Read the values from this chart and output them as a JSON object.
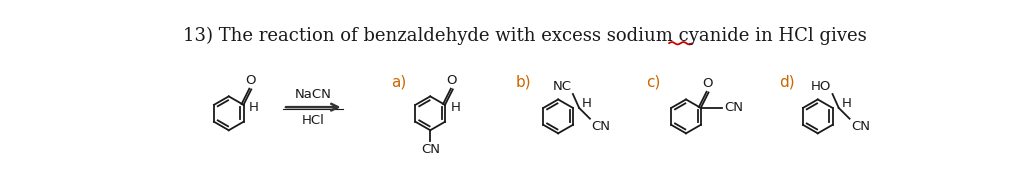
{
  "title_text": "13) The reaction of benzaldehyde with excess sodium cyanide in HCl gives",
  "title_fontsize": 13.0,
  "title_color": "#1a1a1a",
  "underline_color": "#cc0000",
  "bg_color": "#ffffff",
  "label_a": "a)",
  "label_b": "b)",
  "label_c": "c)",
  "label_d": "d)",
  "reagent_line1": "NaCN",
  "reagent_line2": "HCl",
  "structure_font": 9.5,
  "label_fontsize": 11,
  "label_color": "#cc6600"
}
